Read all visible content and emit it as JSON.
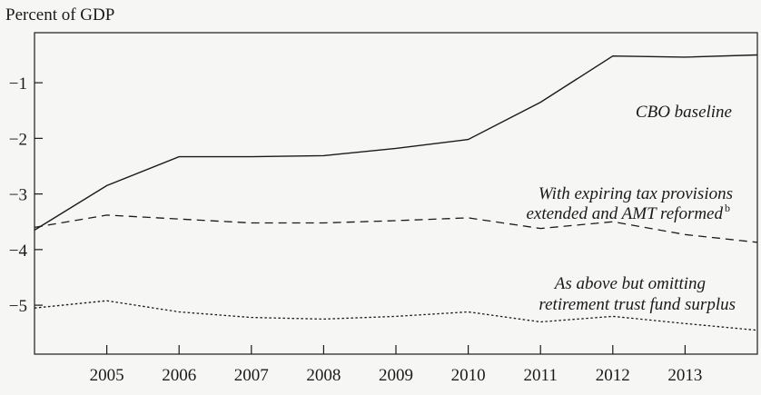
{
  "chart_data": {
    "type": "line",
    "title": "",
    "ylabel": "Percent of GDP",
    "xlabel": "",
    "x": [
      2004,
      2005,
      2006,
      2007,
      2008,
      2009,
      2010,
      2011,
      2012,
      2013,
      2014
    ],
    "x_tick_labels": [
      "2005",
      "2006",
      "2007",
      "2008",
      "2009",
      "2010",
      "2011",
      "2012",
      "2013"
    ],
    "y_tick_labels": [
      "-1",
      "-2",
      "-3",
      "-4",
      "-5"
    ],
    "xlim": [
      2004,
      2014
    ],
    "ylim": [
      -5.88,
      -0.1
    ],
    "grid": false,
    "legend": "none (lines labeled directly)",
    "series": [
      {
        "name": "CBO baseline",
        "style": "solid",
        "values": [
          -3.65,
          -2.85,
          -2.33,
          -2.33,
          -2.31,
          -2.18,
          -2.02,
          -1.35,
          -0.52,
          -0.54,
          -0.5
        ]
      },
      {
        "name": "With expiring tax provisions extended and AMT reformed",
        "name_suffix_superscript": "b",
        "style": "dashed",
        "values": [
          -3.6,
          -3.38,
          -3.45,
          -3.52,
          -3.52,
          -3.48,
          -3.43,
          -3.62,
          -3.5,
          -3.73,
          -3.87
        ]
      },
      {
        "name": "As above but omitting retirement trust fund surplus",
        "style": "dotted",
        "values": [
          -5.05,
          -4.92,
          -5.12,
          -5.22,
          -5.25,
          -5.2,
          -5.12,
          -5.3,
          -5.2,
          -5.33,
          -5.45
        ]
      }
    ]
  },
  "labels": {
    "cbo_baseline": "CBO baseline",
    "tax_line1": "With expiring tax provisions",
    "tax_line2": "extended and AMT reformed",
    "tax_sup": "b",
    "retire_line1": "As above but omitting",
    "retire_line2": "retirement trust fund surplus"
  },
  "colors": {
    "line": "#1a1a1a",
    "background": "#f6f6f4"
  }
}
